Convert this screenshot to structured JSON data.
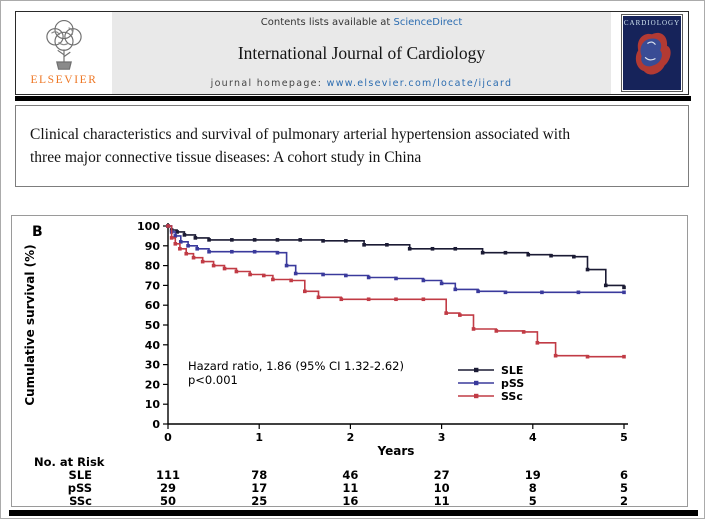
{
  "journal_header": {
    "publisher": "ELSEVIER",
    "contents_line_prefix": "Contents lists available at ",
    "sciencedirect": "ScienceDirect",
    "journal_title": "International Journal of Cardiology",
    "homepage_prefix": "journal homepage: ",
    "homepage_url": "www.elsevier.com/locate/ijcard",
    "cover_title": "CARDIOLOGY"
  },
  "article": {
    "title": "Clinical characteristics and survival of pulmonary arterial hypertension associated with three major connective tissue diseases: A cohort study in China"
  },
  "figure": {
    "panel_label": "B"
  },
  "chart_data": {
    "type": "line",
    "subtype": "kaplan-meier-step",
    "title": "",
    "xlabel": "Years",
    "ylabel": "Cumulative survival  (%)",
    "xlim": [
      0,
      5
    ],
    "ylim": [
      0,
      100
    ],
    "xticks": [
      0,
      1,
      2,
      3,
      4,
      5
    ],
    "yticks": [
      0,
      10,
      20,
      30,
      40,
      50,
      60,
      70,
      80,
      90,
      100
    ],
    "grid": false,
    "legend_position": "right-center",
    "annotation": [
      "Hazard ratio, 1.86 (95% CI 1.32-2.62)",
      "p<0.001"
    ],
    "series": [
      {
        "name": "SLE",
        "color": "#1b1b34",
        "points": [
          [
            0,
            100
          ],
          [
            0.04,
            98
          ],
          [
            0.1,
            97
          ],
          [
            0.18,
            95.5
          ],
          [
            0.3,
            94
          ],
          [
            0.45,
            93
          ],
          [
            0.7,
            93
          ],
          [
            0.95,
            93
          ],
          [
            1.2,
            93
          ],
          [
            1.45,
            93
          ],
          [
            1.7,
            92.5
          ],
          [
            1.95,
            92.5
          ],
          [
            2.15,
            90.5
          ],
          [
            2.4,
            90.5
          ],
          [
            2.65,
            88.5
          ],
          [
            2.9,
            88.5
          ],
          [
            3.15,
            88.5
          ],
          [
            3.45,
            86.5
          ],
          [
            3.7,
            86.5
          ],
          [
            3.95,
            85.5
          ],
          [
            4.2,
            85
          ],
          [
            4.45,
            84.5
          ],
          [
            4.6,
            78
          ],
          [
            4.8,
            70
          ],
          [
            5,
            69
          ]
        ]
      },
      {
        "name": "pSS",
        "color": "#3a3a9c",
        "points": [
          [
            0,
            100
          ],
          [
            0.04,
            97
          ],
          [
            0.08,
            95
          ],
          [
            0.14,
            92
          ],
          [
            0.22,
            90
          ],
          [
            0.32,
            88.5
          ],
          [
            0.45,
            87
          ],
          [
            0.7,
            87
          ],
          [
            0.95,
            87
          ],
          [
            1.2,
            86.5
          ],
          [
            1.3,
            80
          ],
          [
            1.4,
            76
          ],
          [
            1.7,
            75.5
          ],
          [
            1.95,
            75
          ],
          [
            2.2,
            74
          ],
          [
            2.5,
            73.5
          ],
          [
            2.8,
            72.5
          ],
          [
            3.0,
            71
          ],
          [
            3.15,
            68
          ],
          [
            3.4,
            67
          ],
          [
            3.7,
            66.5
          ],
          [
            4.1,
            66.5
          ],
          [
            4.5,
            66.5
          ],
          [
            5,
            66.5
          ]
        ]
      },
      {
        "name": "SSc",
        "color": "#c13b45",
        "points": [
          [
            0,
            100
          ],
          [
            0.04,
            94
          ],
          [
            0.08,
            91
          ],
          [
            0.13,
            88.5
          ],
          [
            0.2,
            86
          ],
          [
            0.28,
            84
          ],
          [
            0.38,
            82
          ],
          [
            0.5,
            80
          ],
          [
            0.62,
            78.5
          ],
          [
            0.75,
            77
          ],
          [
            0.9,
            75.5
          ],
          [
            1.05,
            75
          ],
          [
            1.15,
            73
          ],
          [
            1.35,
            72.5
          ],
          [
            1.5,
            67
          ],
          [
            1.65,
            64
          ],
          [
            1.9,
            63
          ],
          [
            2.2,
            63
          ],
          [
            2.5,
            63
          ],
          [
            2.8,
            63
          ],
          [
            3.05,
            56
          ],
          [
            3.2,
            55
          ],
          [
            3.35,
            48
          ],
          [
            3.6,
            47
          ],
          [
            3.9,
            46.5
          ],
          [
            4.05,
            41
          ],
          [
            4.25,
            34.5
          ],
          [
            4.6,
            34
          ],
          [
            5,
            34
          ]
        ]
      }
    ],
    "risk_table": {
      "label": "No. at Risk",
      "time_points": [
        0,
        1,
        2,
        3,
        4,
        5
      ],
      "rows": [
        {
          "name": "SLE",
          "values": [
            111,
            78,
            46,
            27,
            19,
            6
          ]
        },
        {
          "name": "pSS",
          "values": [
            29,
            17,
            11,
            10,
            8,
            5
          ]
        },
        {
          "name": "SSc",
          "values": [
            50,
            25,
            16,
            11,
            5,
            2
          ]
        }
      ]
    }
  }
}
